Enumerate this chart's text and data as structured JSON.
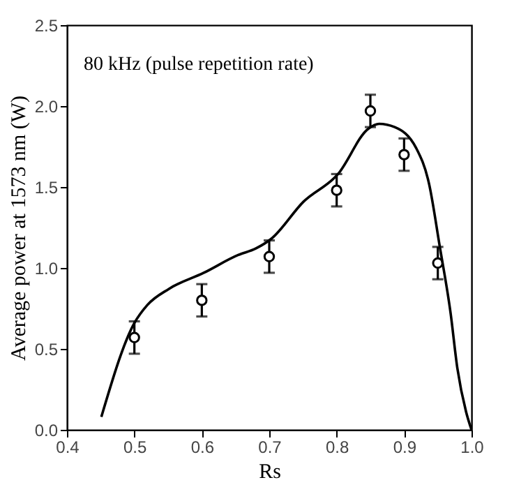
{
  "chart_data": {
    "type": "scatter",
    "xlabel": "Rs",
    "ylabel": "Average power at 1573 nm (W)",
    "annotations": [
      "80 kHz (pulse repetition rate)"
    ],
    "xlim": [
      0.4,
      1.0
    ],
    "ylim": [
      0,
      2.5
    ],
    "xticks": [
      0.4,
      0.5,
      0.6,
      0.7,
      0.8,
      0.9,
      {
        "value": 1,
        "label": "1.0"
      }
    ],
    "yticks": [
      {
        "value": 0,
        "label": "0.0"
      },
      0.5,
      {
        "value": 1,
        "label": "1.0"
      },
      1.5,
      {
        "value": 2,
        "label": "2.0"
      },
      2.5
    ],
    "grid": false,
    "series": [
      {
        "color": "#000000",
        "marker": "circle",
        "x": [
          0.5,
          0.6,
          0.7,
          0.8,
          0.85,
          0.9,
          0.95
        ],
        "values": [
          0.57,
          0.8,
          1.07,
          1.48,
          1.97,
          1.7,
          1.03
        ],
        "errors": [
          0.1,
          0.1,
          0.1,
          0.1,
          0.1,
          0.1,
          0.1
        ]
      },
      {
        "type": "line",
        "color": "#000000",
        "marker": "none",
        "line_style": "solid",
        "x": [
          0.451,
          0.5,
          0.519,
          0.551,
          0.603,
          0.654,
          0.68,
          0.703,
          0.751,
          0.802,
          0.847,
          0.863,
          0.886,
          0.918,
          0.937,
          0.953,
          0.969,
          0.979,
          0.992,
          1.0
        ],
        "values": [
          0.08,
          0.66,
          0.77,
          0.87,
          0.97,
          1.08,
          1.12,
          1.18,
          1.41,
          1.58,
          1.86,
          1.89,
          1.87,
          1.74,
          1.52,
          1.13,
          0.72,
          0.38,
          0.11,
          0
        ]
      }
    ]
  }
}
